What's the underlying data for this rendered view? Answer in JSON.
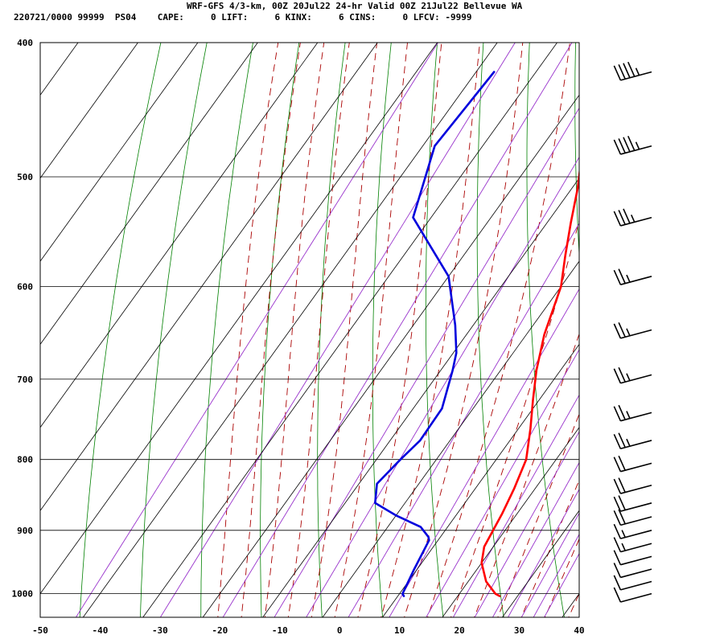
{
  "header": {
    "title": "WRF-GFS 4/3-km, 00Z 20Jul22 24-hr Valid 00Z 21Jul22 Bellevue WA",
    "stats": "220721/0000 99999  PS04    CAPE:     0 LIFT:     6 KINX:     6 CINS:     0 LFCV: -9999"
  },
  "colors": {
    "temperature": "#ff0000",
    "dewpoint": "#0000dd",
    "isotherm_grid": "#000000",
    "dry_adiabat": "#008000",
    "moist_adiabat": "#aa0000",
    "mixing_ratio": "#9933cc",
    "wind_barb": "#000000"
  },
  "chart_data": {
    "type": "line",
    "chart_kind": "skew-T log-P sounding",
    "xlim": [
      -50,
      40
    ],
    "ylim": [
      400,
      1040
    ],
    "y_scale": "log",
    "y_reversed": true,
    "grid": true,
    "xticks": [
      -50,
      -40,
      -30,
      -20,
      -10,
      0,
      10,
      20,
      30,
      40
    ],
    "yticks": [
      400,
      500,
      600,
      700,
      800,
      900,
      1000
    ],
    "series": [
      {
        "key": "temperature",
        "x": [
          27,
          26,
          23,
          20,
          18.5,
          18,
          17.5,
          16.5,
          15,
          12,
          9,
          6,
          3,
          0,
          -3,
          -6,
          -9,
          -12,
          -15,
          -20
        ],
        "y": [
          1004,
          1000,
          980,
          950,
          925,
          900,
          875,
          840,
          800,
          760,
          725,
          690,
          650,
          600,
          570,
          540,
          510,
          485,
          460,
          420
        ]
      },
      {
        "key": "dewpoint",
        "x": [
          11,
          10.5,
          9.5,
          8.5,
          8,
          5.5,
          0,
          -5,
          -7,
          -6,
          -5,
          -5.2,
          -8,
          -9.5,
          -13,
          -20,
          -33,
          -35,
          -38,
          -37
        ],
        "y": [
          1004,
          1000,
          960,
          915,
          910,
          895,
          878,
          860,
          833,
          800,
          775,
          735,
          690,
          670,
          640,
          590,
          535,
          510,
          475,
          420
        ]
      }
    ],
    "wind_barbs": [
      {
        "p": 420,
        "kt": 45
      },
      {
        "p": 475,
        "kt": 45
      },
      {
        "p": 535,
        "kt": 35
      },
      {
        "p": 590,
        "kt": 25
      },
      {
        "p": 645,
        "kt": 25
      },
      {
        "p": 695,
        "kt": 25
      },
      {
        "p": 740,
        "kt": 25
      },
      {
        "p": 775,
        "kt": 25
      },
      {
        "p": 805,
        "kt": 20
      },
      {
        "p": 835,
        "kt": 20
      },
      {
        "p": 860,
        "kt": 20
      },
      {
        "p": 880,
        "kt": 20
      },
      {
        "p": 900,
        "kt": 15
      },
      {
        "p": 920,
        "kt": 15
      },
      {
        "p": 940,
        "kt": 10
      },
      {
        "p": 960,
        "kt": 10
      },
      {
        "p": 980,
        "kt": 10
      },
      {
        "p": 1000,
        "kt": 10
      }
    ]
  }
}
